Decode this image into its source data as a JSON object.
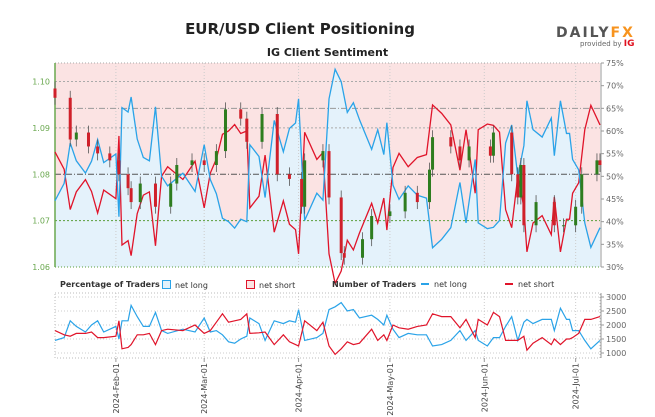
{
  "title": "EUR/USD Client Positioning",
  "subtitle": "IG Client Sentiment",
  "logo": {
    "brand_a": "DAILY",
    "brand_b": "FX",
    "provided_by": "provided by",
    "ig": "IG"
  },
  "legend": {
    "pct_title": "Percentage of Traders",
    "pct_long": "net long",
    "pct_short": "net short",
    "num_title": "Number of Traders",
    "num_long": "net long",
    "num_short": "net short"
  },
  "colors": {
    "long": "#2aa3e8",
    "short": "#e0142a",
    "long_fill": "#e4f2fb",
    "short_fill": "#fbe3e3",
    "up_candle": "#2e7d1f",
    "down_candle": "#d0202a",
    "price_axis": "#6aa84f"
  },
  "chart_data": [
    {
      "type": "candlestick+line",
      "title": "IG Client Sentiment",
      "left_axis": {
        "ticks": [
          "1.10",
          "1.09",
          "1.08",
          "1.07",
          "1.06"
        ],
        "ylim": [
          1.06,
          1.104
        ]
      },
      "right_axis": {
        "ticks": [
          "75%",
          "70%",
          "65%",
          "60%",
          "55%",
          "50%",
          "45%",
          "40%",
          "35%",
          "30%"
        ],
        "ylim": [
          30,
          75
        ]
      },
      "price_close": [
        [
          "2024-01-12",
          1.0965
        ],
        [
          "2024-01-17",
          1.0875
        ],
        [
          "2024-01-19",
          1.089
        ],
        [
          "2024-01-23",
          1.086
        ],
        [
          "2024-01-26",
          1.0845
        ],
        [
          "2024-01-30",
          1.083
        ],
        [
          "2024-02-02",
          1.08
        ],
        [
          "2024-02-05",
          1.077
        ],
        [
          "2024-02-06",
          1.074
        ],
        [
          "2024-02-09",
          1.078
        ],
        [
          "2024-02-14",
          1.073
        ],
        [
          "2024-02-19",
          1.078
        ],
        [
          "2024-02-21",
          1.082
        ],
        [
          "2024-02-26",
          1.083
        ],
        [
          "2024-03-01",
          1.082
        ],
        [
          "2024-03-05",
          1.085
        ],
        [
          "2024-03-08",
          1.094
        ],
        [
          "2024-03-13",
          1.092
        ],
        [
          "2024-03-15",
          1.087
        ],
        [
          "2024-03-20",
          1.093
        ],
        [
          "2024-03-25",
          1.08
        ],
        [
          "2024-03-29",
          1.079
        ],
        [
          "2024-04-02",
          1.073
        ],
        [
          "2024-04-03",
          1.083
        ],
        [
          "2024-04-09",
          1.085
        ],
        [
          "2024-04-11",
          1.075
        ],
        [
          "2024-04-15",
          1.063
        ],
        [
          "2024-04-16",
          1.062
        ],
        [
          "2024-04-22",
          1.066
        ],
        [
          "2024-04-25",
          1.071
        ],
        [
          "2024-05-01",
          1.072
        ],
        [
          "2024-05-06",
          1.076
        ],
        [
          "2024-05-10",
          1.074
        ],
        [
          "2024-05-14",
          1.081
        ],
        [
          "2024-05-15",
          1.088
        ],
        [
          "2024-05-21",
          1.086
        ],
        [
          "2024-05-24",
          1.083
        ],
        [
          "2024-05-27",
          1.086
        ],
        [
          "2024-06-03",
          1.084
        ],
        [
          "2024-06-04",
          1.089
        ],
        [
          "2024-06-10",
          1.08
        ],
        [
          "2024-06-12",
          1.075
        ],
        [
          "2024-06-13",
          1.082
        ],
        [
          "2024-06-14",
          1.069
        ],
        [
          "2024-06-18",
          1.074
        ],
        [
          "2024-06-24",
          1.069
        ],
        [
          "2024-06-27",
          1.069
        ],
        [
          "2024-07-01",
          1.073
        ],
        [
          "2024-07-03",
          1.08
        ],
        [
          "2024-07-08",
          1.083
        ],
        [
          "2024-07-09",
          1.082
        ]
      ],
      "series": [
        {
          "name": "net long"
        },
        {
          "name": "net short"
        }
      ],
      "reference_lines": [
        "50%",
        "65%",
        "1.07"
      ]
    },
    {
      "type": "line",
      "right_axis": {
        "ticks": [
          "3000",
          "2500",
          "2000",
          "1500",
          "1000"
        ],
        "ylim": [
          900,
          3000
        ]
      },
      "x_ticks": [
        "2024-Feb-01",
        "2024-Mar-01",
        "2024-Apr-01",
        "2024-May-01",
        "2024-Jun-01",
        "2024-Jul-01"
      ],
      "x_tick_dates": [
        "2024-02-01",
        "2024-03-01",
        "2024-04-01",
        "2024-05-01",
        "2024-06-01",
        "2024-07-01"
      ],
      "xlim": [
        "2024-01-12",
        "2024-07-09"
      ],
      "dates": [
        "2024-01-12",
        "2024-01-15",
        "2024-01-17",
        "2024-01-19",
        "2024-01-22",
        "2024-01-24",
        "2024-01-26",
        "2024-01-28",
        "2024-02-01",
        "2024-02-02",
        "2024-02-03",
        "2024-02-05",
        "2024-02-06",
        "2024-02-08",
        "2024-02-10",
        "2024-02-12",
        "2024-02-14",
        "2024-02-16",
        "2024-02-18",
        "2024-02-23",
        "2024-02-27",
        "2024-03-01",
        "2024-03-03",
        "2024-03-05",
        "2024-03-07",
        "2024-03-09",
        "2024-03-11",
        "2024-03-13",
        "2024-03-15",
        "2024-03-16",
        "2024-03-19",
        "2024-03-21",
        "2024-03-24",
        "2024-03-27",
        "2024-03-29",
        "2024-03-31",
        "2024-04-01",
        "2024-04-03",
        "2024-04-07",
        "2024-04-09",
        "2024-04-11",
        "2024-04-13",
        "2024-04-15",
        "2024-04-17",
        "2024-04-19",
        "2024-04-21",
        "2024-04-25",
        "2024-04-27",
        "2024-04-29",
        "2024-04-30",
        "2024-05-02",
        "2024-05-04",
        "2024-05-07",
        "2024-05-10",
        "2024-05-13",
        "2024-05-15",
        "2024-05-18",
        "2024-05-21",
        "2024-05-24",
        "2024-05-26",
        "2024-05-29",
        "2024-05-30",
        "2024-06-02",
        "2024-06-04",
        "2024-06-06",
        "2024-06-08",
        "2024-06-10",
        "2024-06-12",
        "2024-06-14",
        "2024-06-15",
        "2024-06-17",
        "2024-06-20",
        "2024-06-23",
        "2024-06-24",
        "2024-06-26",
        "2024-06-28",
        "2024-06-29",
        "2024-06-30",
        "2024-07-02",
        "2024-07-04",
        "2024-07-06",
        "2024-07-09"
      ],
      "series": [
        {
          "name": "net long",
          "values": [
            1450,
            1550,
            2150,
            1950,
            1750,
            2000,
            2150,
            1750,
            1950,
            1500,
            2150,
            2150,
            2700,
            2300,
            1950,
            1950,
            2450,
            1800,
            1700,
            1850,
            1750,
            2250,
            1750,
            1800,
            1650,
            1400,
            1350,
            1500,
            1600,
            2250,
            2050,
            1450,
            2150,
            2050,
            2150,
            2100,
            2550,
            1450,
            1550,
            1700,
            2550,
            2650,
            2800,
            2500,
            2550,
            2250,
            2350,
            2200,
            2000,
            2350,
            1850,
            1550,
            1700,
            1650,
            1650,
            1250,
            1300,
            1450,
            1800,
            1450,
            1800,
            1450,
            1250,
            1550,
            1550,
            1950,
            2300,
            1450,
            2100,
            2200,
            2050,
            2200,
            2200,
            1800,
            2600,
            2200,
            2200,
            1800,
            1800,
            1450,
            1150,
            1450
          ]
        },
        {
          "name": "net short",
          "values": [
            1800,
            1650,
            1600,
            1700,
            1700,
            1750,
            1550,
            1550,
            1600,
            2150,
            1150,
            1200,
            1300,
            1650,
            1650,
            1700,
            1300,
            1800,
            1850,
            1800,
            2000,
            1700,
            1800,
            2100,
            2400,
            2100,
            2150,
            2200,
            2400,
            1700,
            1720,
            1750,
            1300,
            1650,
            1400,
            1300,
            1250,
            2150,
            1800,
            2100,
            1250,
            950,
            1150,
            1400,
            1300,
            1350,
            1850,
            1450,
            1650,
            1450,
            2000,
            1900,
            1850,
            1950,
            2000,
            2400,
            2300,
            2300,
            1900,
            2200,
            1550,
            2200,
            2000,
            2450,
            2300,
            1450,
            1450,
            1450,
            1600,
            1100,
            1350,
            1550,
            1300,
            1500,
            1300,
            1500,
            1500,
            1550,
            1700,
            2200,
            2200,
            2300
          ]
        }
      ]
    }
  ]
}
